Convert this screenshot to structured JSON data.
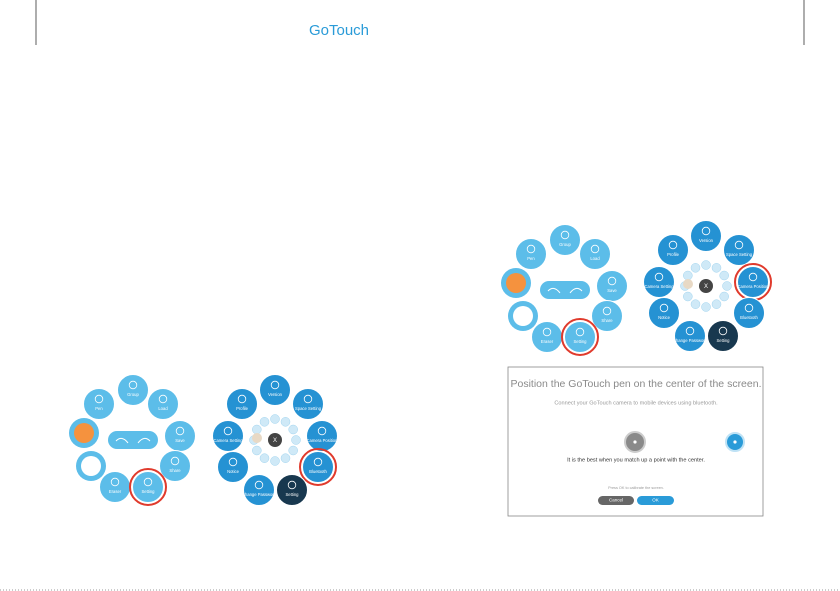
{
  "header": {
    "logo": "GoTouch"
  },
  "menus": [
    {
      "items": [
        "Group",
        "Pen",
        "Load",
        "Save",
        "Share",
        "Eraser",
        "Setting"
      ]
    },
    {
      "items": [
        "Version",
        "Profile",
        "Space Setting",
        "Camera Setting",
        "Camera Position",
        "Notice",
        "Bluetooth",
        "Change Password",
        "Setting",
        "X"
      ]
    },
    {
      "items": [
        "Group",
        "Pen",
        "Load",
        "Save",
        "Share",
        "Eraser",
        "Setting"
      ]
    },
    {
      "items": [
        "Version",
        "Profile",
        "Space Setting",
        "Camera Setting",
        "Camera Position",
        "Notice",
        "Bluetooth",
        "Change Password",
        "Setting",
        "X"
      ]
    }
  ],
  "dialog": {
    "title": "Position the GoTouch pen on the center of the screen.",
    "subtitle": "Connect your GoTouch camera to mobile devices using bluetooth.",
    "hint": "It is the best when you match up a point with the center.",
    "note": "Press OK to calibrate the screen.",
    "cancel": "Cancel",
    "ok": "OK"
  }
}
